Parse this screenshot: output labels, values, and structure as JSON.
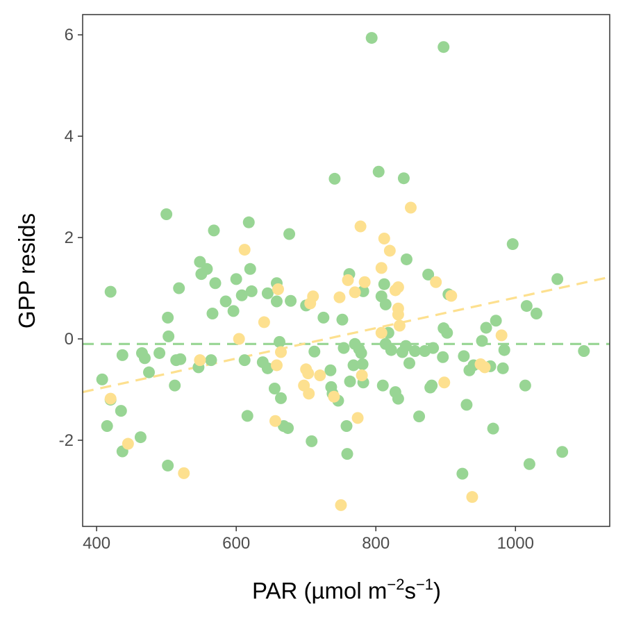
{
  "chart_data": {
    "type": "scatter",
    "title": "",
    "xlabel_parts": {
      "base": "PAR (µmol  m",
      "sup1": "−2",
      "mid": "s",
      "sup2": "−1",
      "end": ")"
    },
    "ylabel": "GPP resids",
    "xlim": [
      380,
      1135
    ],
    "ylim": [
      -3.7,
      6.4
    ],
    "xticks": [
      400,
      600,
      800,
      1000
    ],
    "yticks": [
      -2,
      0,
      2,
      4,
      6
    ],
    "xtick_labels": [
      "400",
      "600",
      "800",
      "1000"
    ],
    "ytick_labels": [
      "-2",
      "0",
      "2",
      "4",
      "6"
    ],
    "grid": false,
    "legend": "none",
    "colors": {
      "green": "#98d594",
      "yellow": "#fde08f",
      "frame": "#333333"
    },
    "series": [
      {
        "color": "green",
        "fit_line": {
          "type": "horizontal",
          "y": -0.1
        },
        "points": [
          [
            408,
            -0.8
          ],
          [
            415,
            -1.72
          ],
          [
            420,
            0.93
          ],
          [
            420,
            -1.2
          ],
          [
            435,
            -1.42
          ],
          [
            437,
            -0.32
          ],
          [
            437,
            -2.22
          ],
          [
            463,
            -1.94
          ],
          [
            465,
            -0.28
          ],
          [
            469,
            -0.38
          ],
          [
            475,
            -0.66
          ],
          [
            490,
            -0.28
          ],
          [
            500,
            2.46
          ],
          [
            502,
            0.42
          ],
          [
            502,
            -2.5
          ],
          [
            503,
            0.05
          ],
          [
            512,
            -0.92
          ],
          [
            514,
            -0.42
          ],
          [
            518,
            1.0
          ],
          [
            520,
            -0.4
          ],
          [
            546,
            -0.56
          ],
          [
            548,
            1.52
          ],
          [
            550,
            1.28
          ],
          [
            558,
            1.38
          ],
          [
            564,
            -0.42
          ],
          [
            566,
            0.5
          ],
          [
            568,
            2.14
          ],
          [
            570,
            1.1
          ],
          [
            585,
            0.74
          ],
          [
            596,
            0.55
          ],
          [
            600,
            1.18
          ],
          [
            608,
            0.86
          ],
          [
            612,
            -0.42
          ],
          [
            616,
            -1.52
          ],
          [
            618,
            2.3
          ],
          [
            620,
            1.38
          ],
          [
            622,
            0.94
          ],
          [
            638,
            -0.46
          ],
          [
            645,
            0.9
          ],
          [
            645,
            -0.58
          ],
          [
            655,
            -0.98
          ],
          [
            658,
            0.74
          ],
          [
            658,
            1.1
          ],
          [
            662,
            -0.06
          ],
          [
            664,
            -1.17
          ],
          [
            668,
            -1.72
          ],
          [
            674,
            -1.76
          ],
          [
            676,
            2.07
          ],
          [
            678,
            0.75
          ],
          [
            700,
            0.66
          ],
          [
            708,
            -2.02
          ],
          [
            712,
            -0.25
          ],
          [
            725,
            0.42
          ],
          [
            735,
            -0.62
          ],
          [
            736,
            -0.95
          ],
          [
            738,
            -1.08
          ],
          [
            741,
            3.16
          ],
          [
            746,
            -1.22
          ],
          [
            752,
            0.38
          ],
          [
            754,
            -0.18
          ],
          [
            758,
            -1.72
          ],
          [
            759,
            -2.27
          ],
          [
            762,
            1.28
          ],
          [
            763,
            -0.84
          ],
          [
            768,
            -0.52
          ],
          [
            770,
            -0.1
          ],
          [
            776,
            -0.2
          ],
          [
            779,
            -0.28
          ],
          [
            781,
            -0.5
          ],
          [
            782,
            0.94
          ],
          [
            782,
            -0.86
          ],
          [
            794,
            5.94
          ],
          [
            804,
            3.3
          ],
          [
            808,
            0.84
          ],
          [
            810,
            -0.92
          ],
          [
            812,
            1.08
          ],
          [
            814,
            -0.1
          ],
          [
            814,
            0.68
          ],
          [
            818,
            0.12
          ],
          [
            822,
            -0.22
          ],
          [
            828,
            -1.05
          ],
          [
            832,
            -1.18
          ],
          [
            838,
            -0.26
          ],
          [
            840,
            3.17
          ],
          [
            843,
            -0.14
          ],
          [
            844,
            1.57
          ],
          [
            848,
            -0.48
          ],
          [
            856,
            -0.24
          ],
          [
            862,
            -1.53
          ],
          [
            870,
            -0.24
          ],
          [
            875,
            1.27
          ],
          [
            878,
            -0.96
          ],
          [
            880,
            -0.92
          ],
          [
            882,
            -0.18
          ],
          [
            896,
            -0.36
          ],
          [
            897,
            5.76
          ],
          [
            897,
            0.21
          ],
          [
            902,
            0.12
          ],
          [
            904,
            0.88
          ],
          [
            924,
            -2.66
          ],
          [
            926,
            -0.34
          ],
          [
            930,
            -1.3
          ],
          [
            934,
            -0.62
          ],
          [
            940,
            -0.52
          ],
          [
            952,
            -0.04
          ],
          [
            958,
            0.22
          ],
          [
            964,
            -0.54
          ],
          [
            968,
            -1.77
          ],
          [
            972,
            0.36
          ],
          [
            982,
            -0.58
          ],
          [
            984,
            -0.22
          ],
          [
            996,
            1.87
          ],
          [
            1014,
            -0.92
          ],
          [
            1016,
            0.65
          ],
          [
            1020,
            -2.47
          ],
          [
            1030,
            0.5
          ],
          [
            1060,
            1.18
          ],
          [
            1067,
            -2.23
          ],
          [
            1098,
            -0.24
          ]
        ]
      },
      {
        "color": "yellow",
        "fit_line": {
          "type": "linear",
          "x": [
            380,
            1135
          ],
          "y": [
            -1.05,
            1.22
          ]
        },
        "points": [
          [
            420,
            -1.18
          ],
          [
            445,
            -2.07
          ],
          [
            525,
            -2.65
          ],
          [
            548,
            -0.42
          ],
          [
            604,
            0.0
          ],
          [
            612,
            1.76
          ],
          [
            640,
            0.33
          ],
          [
            656,
            -1.62
          ],
          [
            658,
            -0.52
          ],
          [
            660,
            0.98
          ],
          [
            664,
            -0.26
          ],
          [
            697,
            -0.92
          ],
          [
            700,
            -0.6
          ],
          [
            703,
            -0.68
          ],
          [
            704,
            -1.08
          ],
          [
            706,
            0.7
          ],
          [
            710,
            0.84
          ],
          [
            720,
            -0.72
          ],
          [
            740,
            -1.14
          ],
          [
            748,
            0.82
          ],
          [
            750,
            -3.28
          ],
          [
            760,
            1.16
          ],
          [
            770,
            0.92
          ],
          [
            774,
            -1.56
          ],
          [
            778,
            2.22
          ],
          [
            780,
            -0.72
          ],
          [
            784,
            1.12
          ],
          [
            808,
            1.4
          ],
          [
            808,
            0.12
          ],
          [
            812,
            1.98
          ],
          [
            820,
            1.74
          ],
          [
            828,
            0.96
          ],
          [
            832,
            1.02
          ],
          [
            832,
            0.6
          ],
          [
            832,
            0.48
          ],
          [
            834,
            0.26
          ],
          [
            850,
            2.59
          ],
          [
            886,
            1.12
          ],
          [
            898,
            -0.86
          ],
          [
            908,
            0.85
          ],
          [
            938,
            -3.12
          ],
          [
            950,
            -0.5
          ],
          [
            956,
            -0.56
          ],
          [
            980,
            0.07
          ]
        ]
      }
    ]
  }
}
